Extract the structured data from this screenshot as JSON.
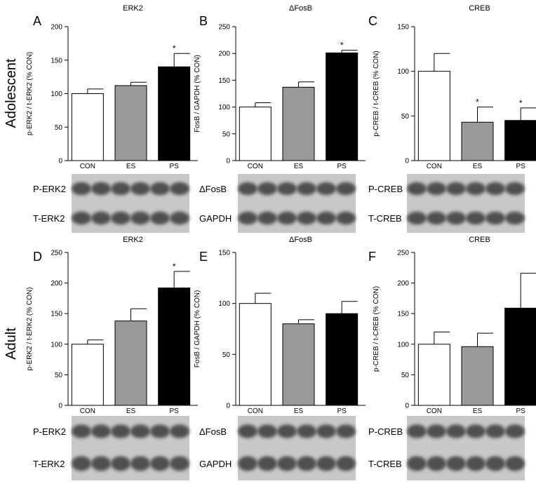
{
  "row_labels": [
    "Adolescent",
    "Adult"
  ],
  "chart_data": [
    {
      "type": "bar",
      "panel": "A",
      "title": "ERK2",
      "ylabel": "p-ERK2 / t-ERK2 (% CON)",
      "categories": [
        "CON",
        "ES",
        "PS"
      ],
      "values": [
        100,
        112,
        140
      ],
      "errors": [
        7,
        5,
        20
      ],
      "annotations": [
        null,
        null,
        "*"
      ],
      "colors": [
        "#ffffff",
        "#999999",
        "#000000"
      ],
      "ylim": [
        0,
        200
      ],
      "yticks": [
        0,
        50,
        100,
        150,
        200
      ],
      "blot_labels": [
        "P-ERK2",
        "T-ERK2"
      ]
    },
    {
      "type": "bar",
      "panel": "B",
      "title": "ΔFosB",
      "ylabel": "FosB / GAPDH (% CON)",
      "categories": [
        "CON",
        "ES",
        "PS"
      ],
      "values": [
        100,
        137,
        201
      ],
      "errors": [
        8,
        10,
        5
      ],
      "annotations": [
        null,
        null,
        "*"
      ],
      "colors": [
        "#ffffff",
        "#999999",
        "#000000"
      ],
      "ylim": [
        0,
        250
      ],
      "yticks": [
        0,
        50,
        100,
        150,
        200,
        250
      ],
      "blot_labels": [
        "ΔFosB",
        "GAPDH"
      ]
    },
    {
      "type": "bar",
      "panel": "C",
      "title": "CREB",
      "ylabel": "p-CREB / t-CREB (% CON)",
      "categories": [
        "CON",
        "ES",
        "PS"
      ],
      "values": [
        100,
        43,
        45
      ],
      "errors": [
        20,
        17,
        14
      ],
      "annotations": [
        null,
        "*",
        "*"
      ],
      "colors": [
        "#ffffff",
        "#999999",
        "#000000"
      ],
      "ylim": [
        0,
        150
      ],
      "yticks": [
        0,
        50,
        100,
        150
      ],
      "blot_labels": [
        "P-CREB",
        "T-CREB"
      ]
    },
    {
      "type": "bar",
      "panel": "D",
      "title": "ERK2",
      "ylabel": "p-ERK2 / t-ERK2 (% CON)",
      "categories": [
        "CON",
        "ES",
        "PS"
      ],
      "values": [
        100,
        138,
        192
      ],
      "errors": [
        7,
        20,
        27
      ],
      "annotations": [
        null,
        null,
        "*"
      ],
      "colors": [
        "#ffffff",
        "#999999",
        "#000000"
      ],
      "ylim": [
        0,
        250
      ],
      "yticks": [
        0,
        50,
        100,
        150,
        200,
        250
      ],
      "blot_labels": [
        "P-ERK2",
        "T-ERK2"
      ]
    },
    {
      "type": "bar",
      "panel": "E",
      "title": "ΔFosB",
      "ylabel": "FosB / GAPDH (% CON)",
      "categories": [
        "CON",
        "ES",
        "PS"
      ],
      "values": [
        100,
        80,
        90
      ],
      "errors": [
        10,
        4,
        12
      ],
      "annotations": [
        null,
        null,
        null
      ],
      "colors": [
        "#ffffff",
        "#999999",
        "#000000"
      ],
      "ylim": [
        0,
        150
      ],
      "yticks": [
        0,
        50,
        100,
        150
      ],
      "blot_labels": [
        "ΔFosB",
        "GAPDH"
      ]
    },
    {
      "type": "bar",
      "panel": "F",
      "title": "CREB",
      "ylabel": "p-CREB / t-CREB (% CON)",
      "categories": [
        "CON",
        "ES",
        "PS"
      ],
      "values": [
        100,
        96,
        159
      ],
      "errors": [
        20,
        22,
        57
      ],
      "annotations": [
        null,
        null,
        null
      ],
      "colors": [
        "#ffffff",
        "#999999",
        "#000000"
      ],
      "ylim": [
        0,
        250
      ],
      "yticks": [
        0,
        50,
        100,
        150,
        200,
        250
      ],
      "blot_labels": [
        "P-CREB",
        "T-CREB"
      ]
    }
  ]
}
